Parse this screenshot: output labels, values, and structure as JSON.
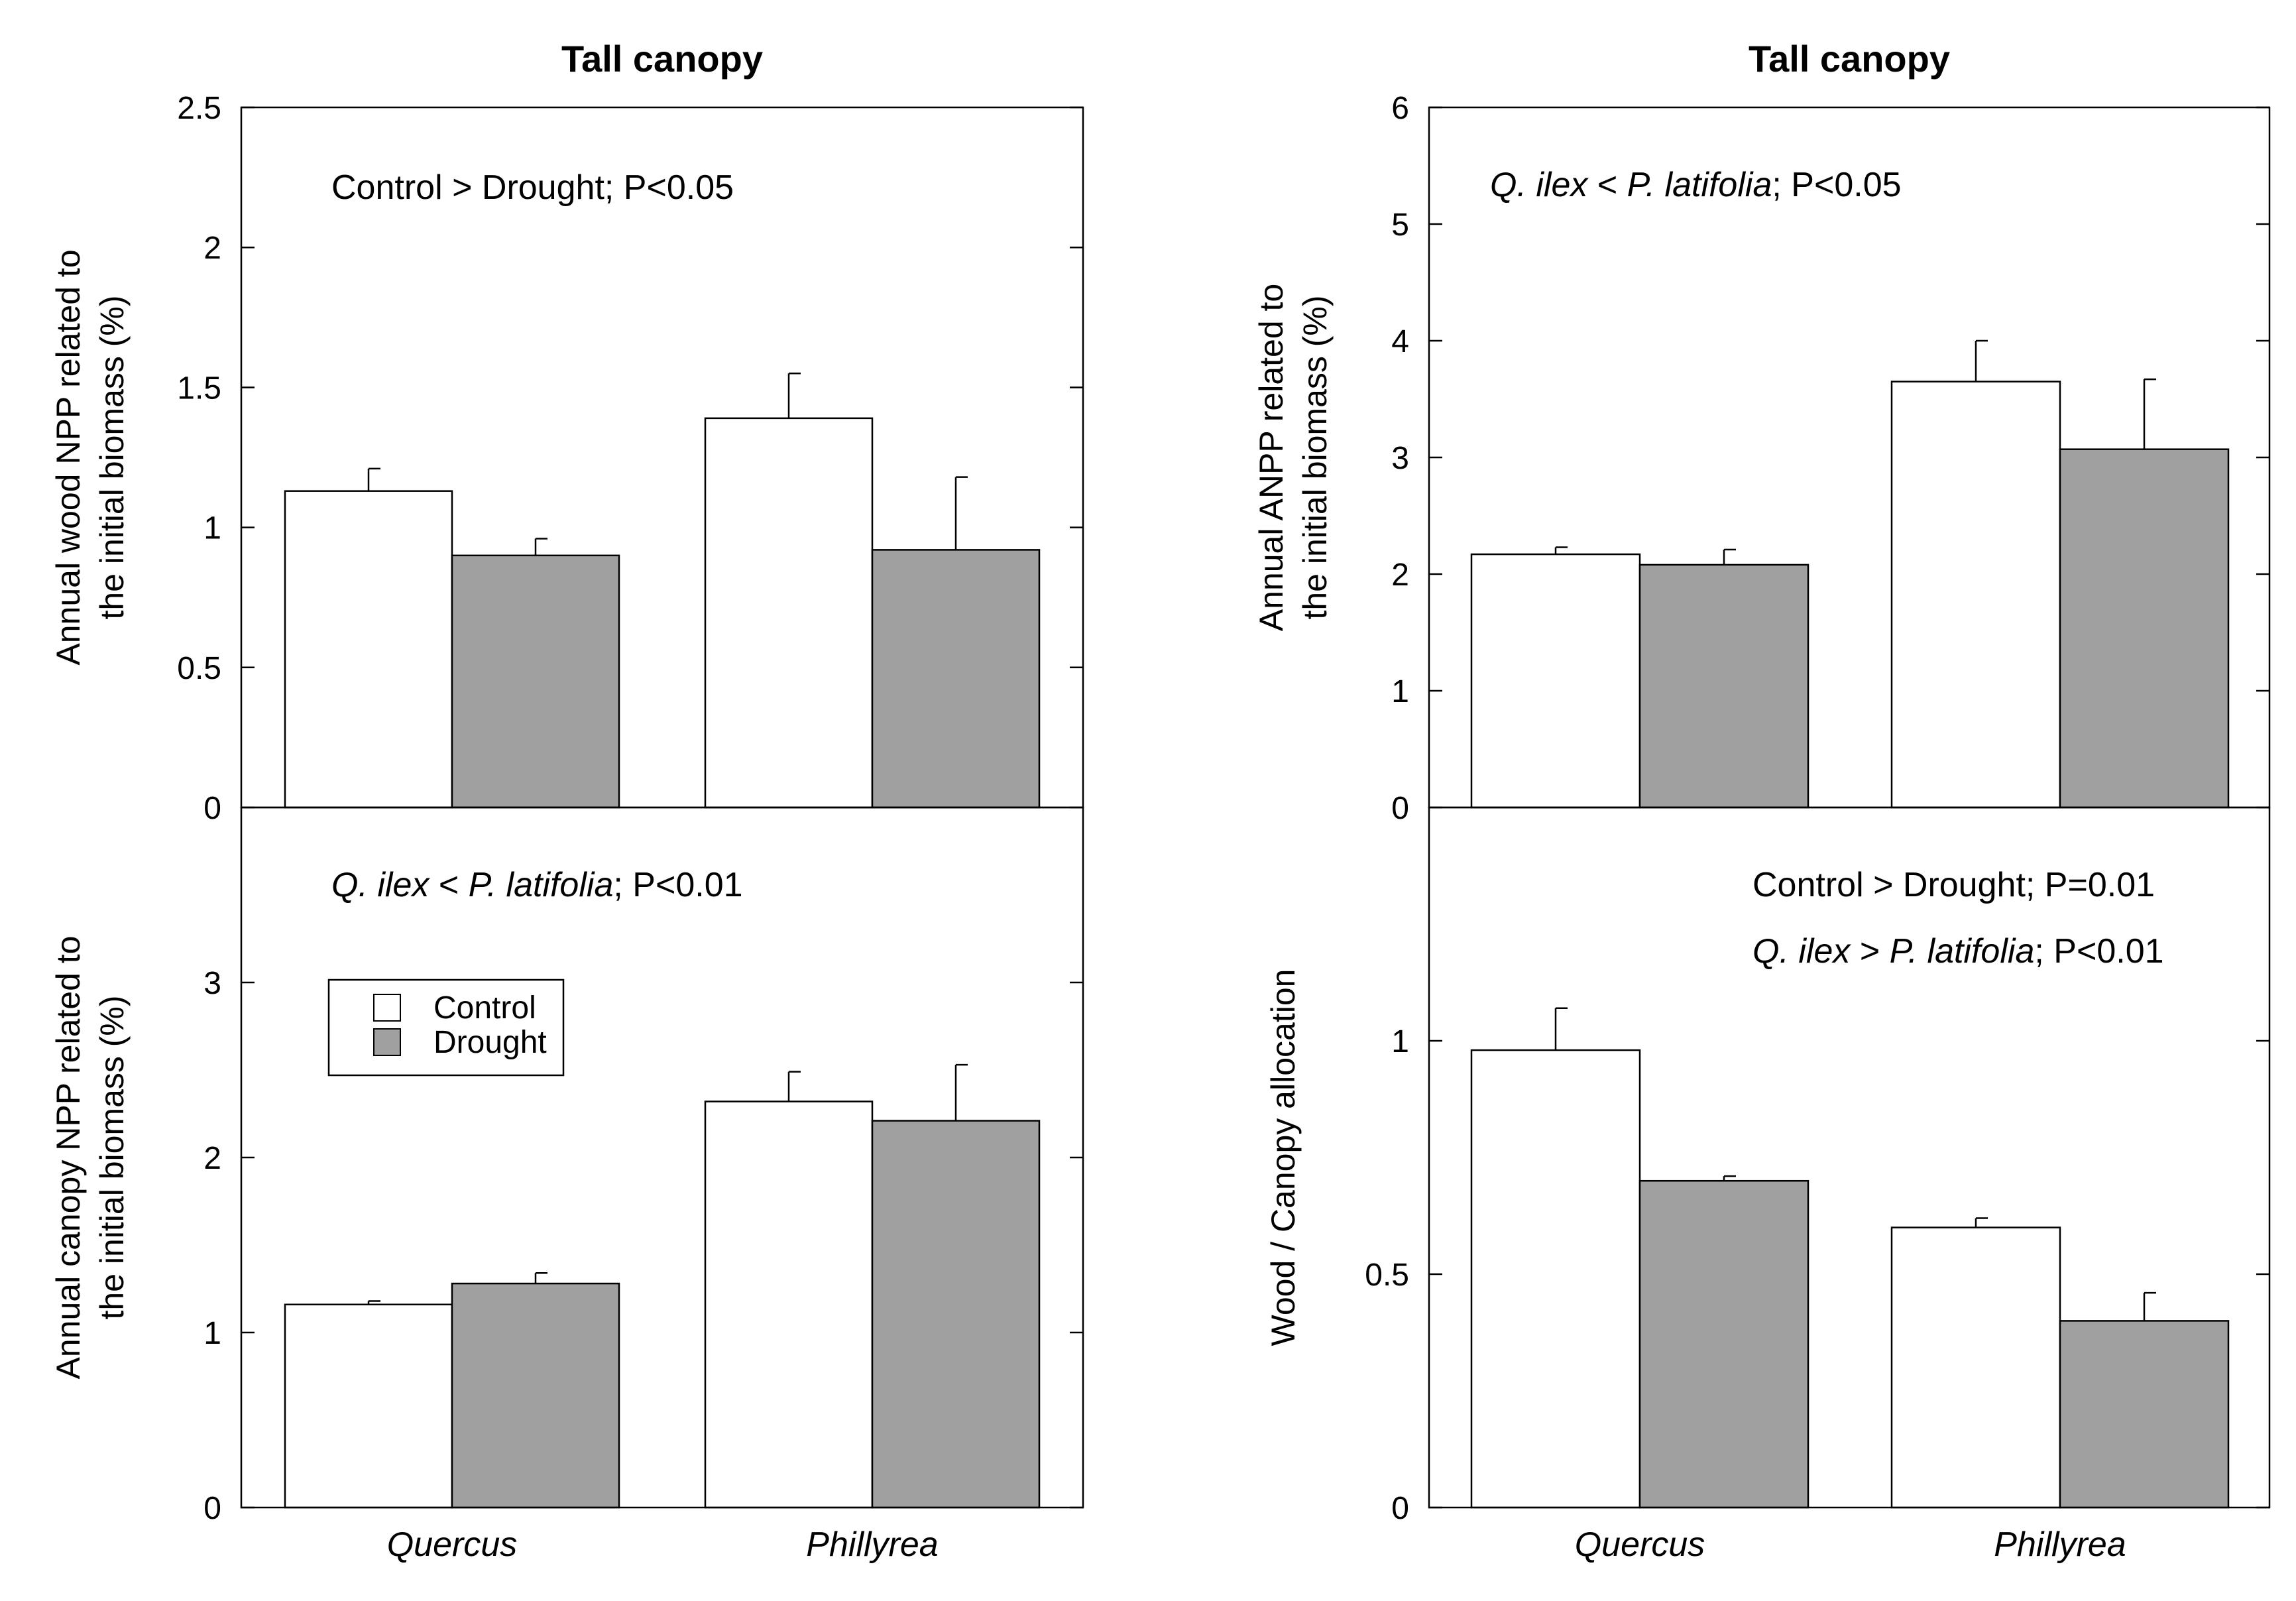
{
  "colors": {
    "control": "#ffffff",
    "drought": "#a0a0a0",
    "stroke": "#000000"
  },
  "legend": {
    "items": [
      {
        "label": "Control",
        "color": "#ffffff"
      },
      {
        "label": "Drought",
        "color": "#a0a0a0"
      }
    ]
  },
  "chart_data": [
    {
      "id": "wood",
      "type": "bar",
      "title": "Tall canopy",
      "ylabel": [
        "Annual wood NPP related to",
        "the initial biomass (%)"
      ],
      "categories": [
        "Quercus",
        "Phillyrea"
      ],
      "ylim": [
        0,
        2.5
      ],
      "yticks": [
        0,
        0.5,
        1,
        1.5,
        2,
        2.5
      ],
      "series": [
        {
          "name": "Control",
          "values": [
            1.13,
            1.39
          ],
          "errors": [
            0.08,
            0.16
          ]
        },
        {
          "name": "Drought",
          "values": [
            0.9,
            0.92
          ],
          "errors": [
            0.06,
            0.26
          ]
        }
      ],
      "annotations": [
        {
          "segments": [
            {
              "text": "Control > Drought; P<0.05",
              "italic": false
            }
          ]
        }
      ]
    },
    {
      "id": "anpp",
      "type": "bar",
      "title": "Tall canopy",
      "ylabel": [
        "Annual ANPP related to",
        "the initial biomass (%)"
      ],
      "categories": [
        "Quercus",
        "Phillyrea"
      ],
      "ylim": [
        0,
        6
      ],
      "yticks": [
        0,
        1,
        2,
        3,
        4,
        5,
        6
      ],
      "series": [
        {
          "name": "Control",
          "values": [
            2.17,
            3.65
          ],
          "errors": [
            0.06,
            0.35
          ]
        },
        {
          "name": "Drought",
          "values": [
            2.08,
            3.07
          ],
          "errors": [
            0.13,
            0.6
          ]
        }
      ],
      "annotations": [
        {
          "segments": [
            {
              "text": "Q. ilex",
              "italic": true
            },
            {
              "text": " < ",
              "italic": false
            },
            {
              "text": "P. latifolia",
              "italic": true
            },
            {
              "text": "; P<0.05",
              "italic": false
            }
          ]
        }
      ]
    },
    {
      "id": "canopy",
      "type": "bar",
      "ylabel": [
        "Annual canopy NPP related to",
        "the initial biomass (%)"
      ],
      "categories": [
        "Quercus",
        "Phillyrea"
      ],
      "ylim": [
        0,
        4
      ],
      "yticks": [
        0,
        1,
        2,
        3
      ],
      "series": [
        {
          "name": "Control",
          "values": [
            1.16,
            2.32
          ],
          "errors": [
            0.02,
            0.17
          ]
        },
        {
          "name": "Drought",
          "values": [
            1.28,
            2.21
          ],
          "errors": [
            0.06,
            0.32
          ]
        }
      ],
      "annotations": [
        {
          "segments": [
            {
              "text": "Q. ilex",
              "italic": true
            },
            {
              "text": " < ",
              "italic": false
            },
            {
              "text": "P. latifolia",
              "italic": true
            },
            {
              "text": "; P<0.01",
              "italic": false
            }
          ]
        }
      ]
    },
    {
      "id": "alloc",
      "type": "bar",
      "ylabel": [
        "Wood  / Canopy allocation"
      ],
      "categories": [
        "Quercus",
        "Phillyrea"
      ],
      "ylim": [
        0,
        1.5
      ],
      "yticks": [
        0,
        0.5,
        1
      ],
      "series": [
        {
          "name": "Control",
          "values": [
            0.98,
            0.6
          ],
          "errors": [
            0.09,
            0.02
          ]
        },
        {
          "name": "Drought",
          "values": [
            0.7,
            0.4
          ],
          "errors": [
            0.01,
            0.06
          ]
        }
      ],
      "annotations": [
        {
          "segments": [
            {
              "text": "Control > Drought; P=0.01",
              "italic": false
            }
          ]
        },
        {
          "segments": [
            {
              "text": "Q. ilex",
              "italic": true
            },
            {
              "text": " > ",
              "italic": false
            },
            {
              "text": "P. latifolia",
              "italic": true
            },
            {
              "text": "; P<0.01",
              "italic": false
            }
          ]
        }
      ]
    }
  ]
}
